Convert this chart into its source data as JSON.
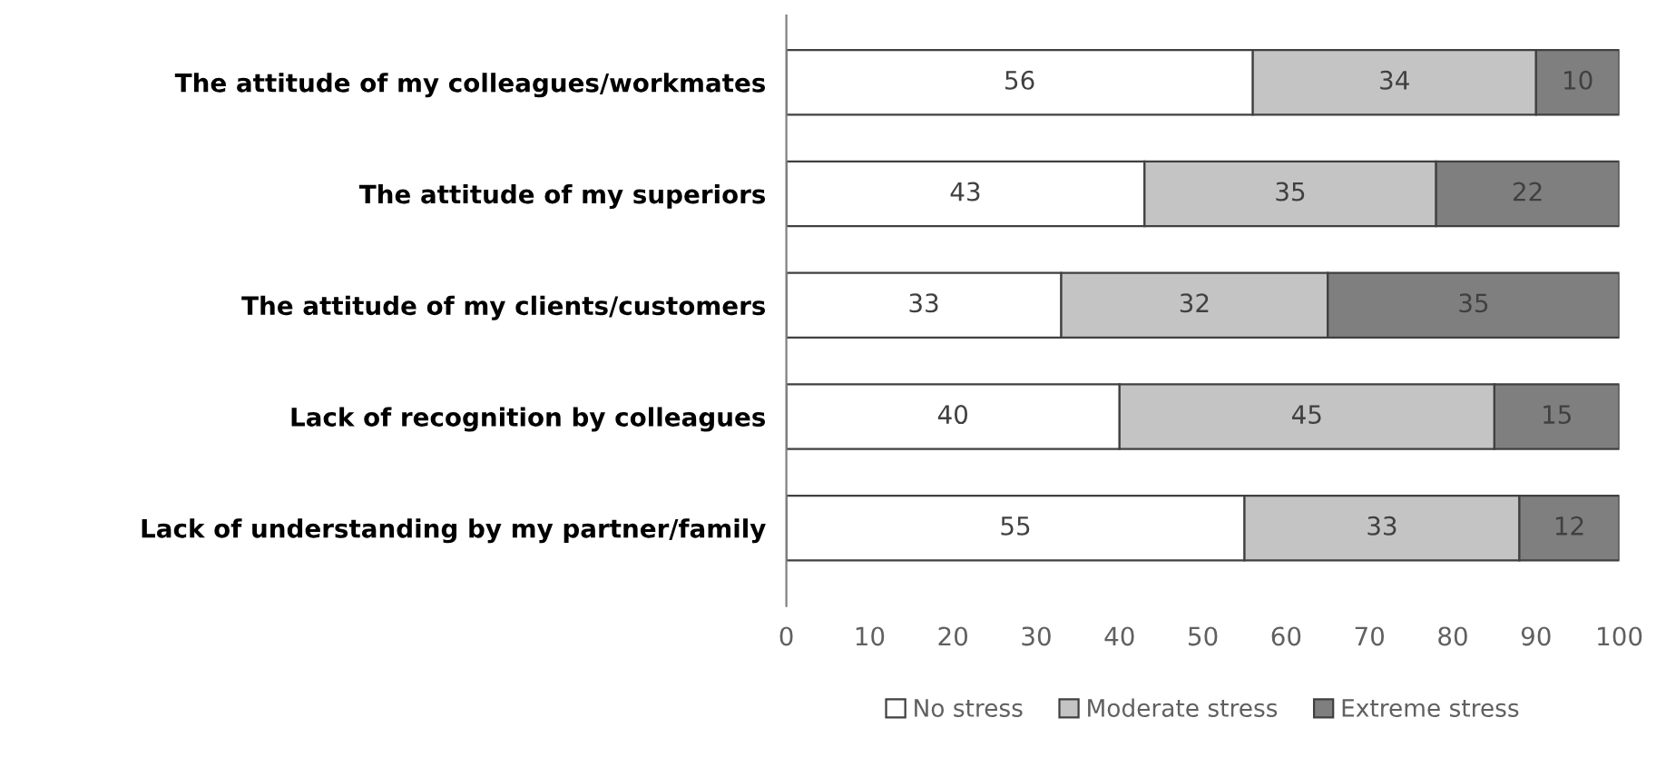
{
  "chart_data": {
    "type": "bar",
    "orientation": "horizontal",
    "stacked": true,
    "categories": [
      "The attitude of my colleagues/workmates",
      "The attitude of my superiors",
      "The attitude of my clients/customers",
      "Lack of recognition by colleagues",
      "Lack of understanding by my partner/family"
    ],
    "series": [
      {
        "name": "No stress",
        "color": "#ffffff",
        "values": [
          56,
          43,
          33,
          40,
          55
        ]
      },
      {
        "name": "Moderate stress",
        "color": "#c4c4c4",
        "values": [
          34,
          35,
          32,
          45,
          33
        ]
      },
      {
        "name": "Extreme stress",
        "color": "#7f7f7f",
        "values": [
          10,
          22,
          35,
          15,
          12
        ]
      }
    ],
    "xlim": [
      0,
      100
    ],
    "xticks": [
      0,
      10,
      20,
      30,
      40,
      50,
      60,
      70,
      80,
      90,
      100
    ],
    "data_labels": true,
    "legend": "bottom",
    "grid": false
  }
}
